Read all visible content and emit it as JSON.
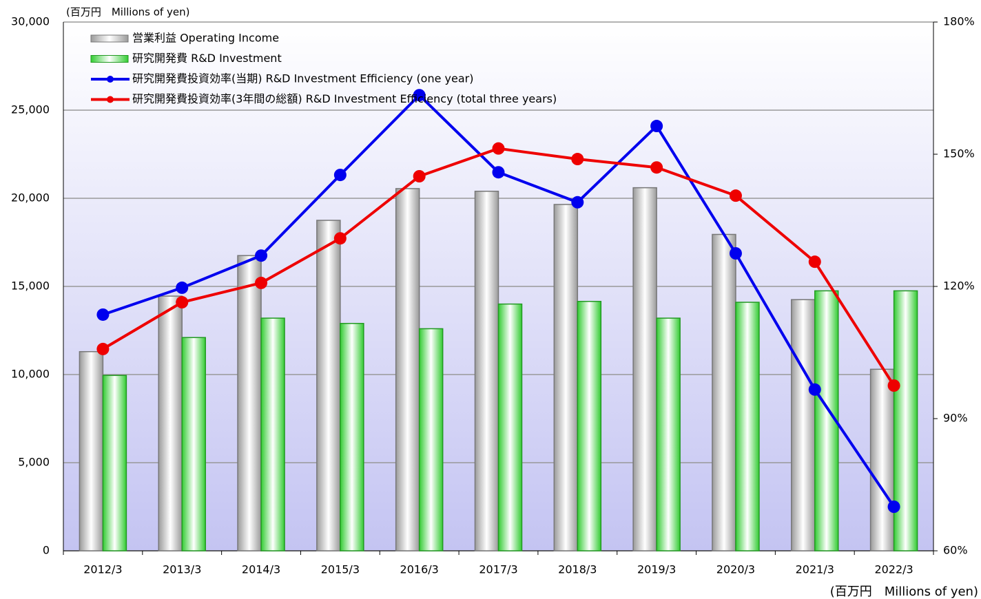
{
  "chart_data": {
    "type": "combo",
    "unit_label_top": "(百万円　Millions of yen)",
    "unit_label_bottom": "(百万円　Millions of yen)",
    "categories": [
      "2012/3",
      "2013/3",
      "2014/3",
      "2015/3",
      "2016/3",
      "2017/3",
      "2018/3",
      "2019/3",
      "2020/3",
      "2021/3",
      "2022/3"
    ],
    "series": [
      {
        "name": "営業利益 Operating Income",
        "type": "bar",
        "color": "#a0a0a0",
        "values": [
          11300,
          14450,
          16750,
          18750,
          20550,
          20400,
          19650,
          20600,
          17950,
          14250,
          10300
        ]
      },
      {
        "name": "研究開発費 R&D Investment",
        "type": "bar",
        "color": "#33bb33",
        "values": [
          9950,
          12100,
          13200,
          12900,
          12600,
          14000,
          14150,
          13200,
          14100,
          14750,
          14750
        ]
      },
      {
        "name": "研究開発費投資効率(当期) R&D Investment Efficiency (one year)",
        "type": "line",
        "axis": "y2",
        "color": "#0000ee",
        "values": [
          113.6,
          119.7,
          127.0,
          145.3,
          163.4,
          145.9,
          139.1,
          156.4,
          127.5,
          96.6,
          70.0
        ]
      },
      {
        "name": "研究開発費投資効率(3年間の総額) R&D Investment Efficiency (total three years)",
        "type": "line",
        "axis": "y2",
        "color": "#ee0000",
        "values": [
          105.8,
          116.4,
          120.8,
          130.9,
          145.0,
          151.3,
          148.9,
          147.0,
          140.6,
          125.6,
          97.5
        ]
      }
    ],
    "ylim": [
      0,
      30000
    ],
    "yticks": [
      0,
      {
        "value": 5000,
        "label": "5,000"
      },
      {
        "value": 10000,
        "label": "10,000"
      },
      {
        "value": 15000,
        "label": "15,000"
      },
      {
        "value": 20000,
        "label": "20,000"
      },
      {
        "value": 25000,
        "label": "25,000"
      },
      {
        "value": 30000,
        "label": "30,000"
      }
    ],
    "y2lim": [
      60,
      180
    ],
    "y2ticks": [
      {
        "value": 60,
        "label": "60%"
      },
      {
        "value": 90,
        "label": "90%"
      },
      {
        "value": 120,
        "label": "120%"
      },
      {
        "value": 150,
        "label": "150%"
      },
      {
        "value": 180,
        "label": "180%"
      }
    ],
    "grid": true,
    "legend": "top-left"
  }
}
